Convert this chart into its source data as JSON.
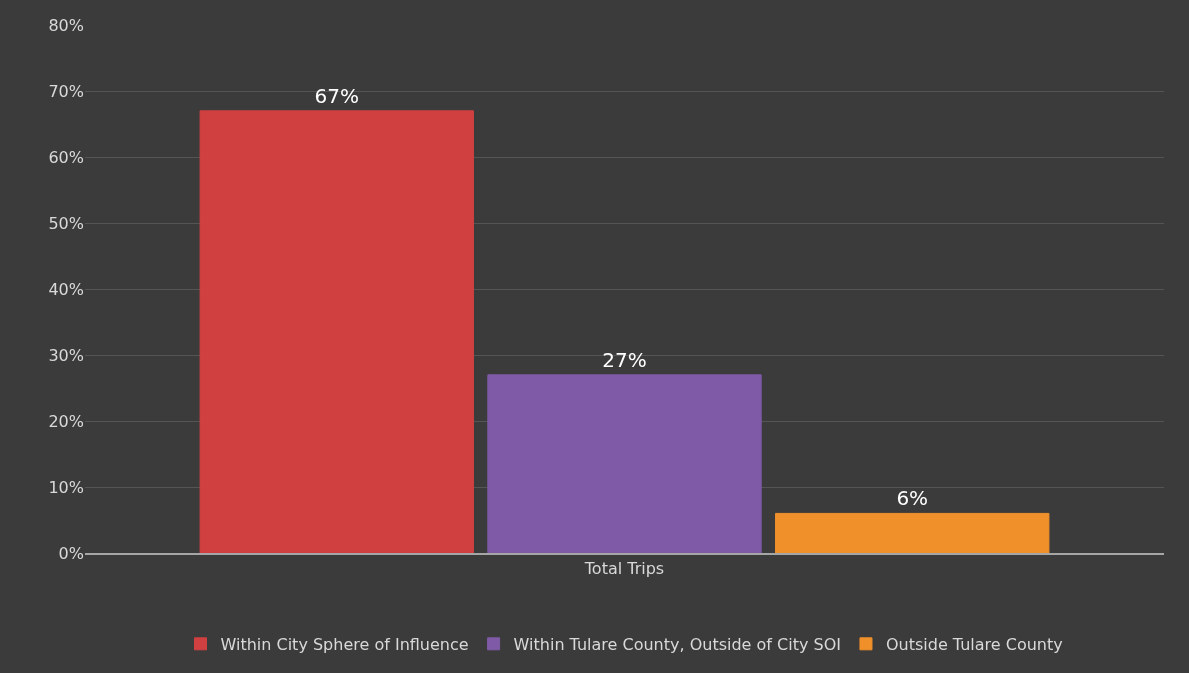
{
  "chart_data": {
    "type": "bar",
    "categories": [
      "Total Trips"
    ],
    "series": [
      {
        "name": "Within City Sphere of Influence",
        "color": "#d04040",
        "values": [
          67
        ],
        "value_labels": [
          "67%"
        ]
      },
      {
        "name": "Within Tulare County, Outside of City SOI",
        "color": "#7f5aa6",
        "values": [
          27
        ],
        "value_labels": [
          "27%"
        ]
      },
      {
        "name": "Outside Tulare County",
        "color": "#f0902a",
        "values": [
          6
        ],
        "value_labels": [
          "6%"
        ]
      }
    ],
    "ylim": [
      0,
      80
    ],
    "yticks": [
      {
        "value": 0,
        "label": "0%"
      },
      {
        "value": 10,
        "label": "10%"
      },
      {
        "value": 20,
        "label": "20%"
      },
      {
        "value": 30,
        "label": "30%"
      },
      {
        "value": 40,
        "label": "40%"
      },
      {
        "value": 50,
        "label": "50%"
      },
      {
        "value": 60,
        "label": "60%"
      },
      {
        "value": 70,
        "label": "70%"
      },
      {
        "value": 80,
        "label": "80%"
      }
    ],
    "grid": "y",
    "legend": "bottom"
  }
}
